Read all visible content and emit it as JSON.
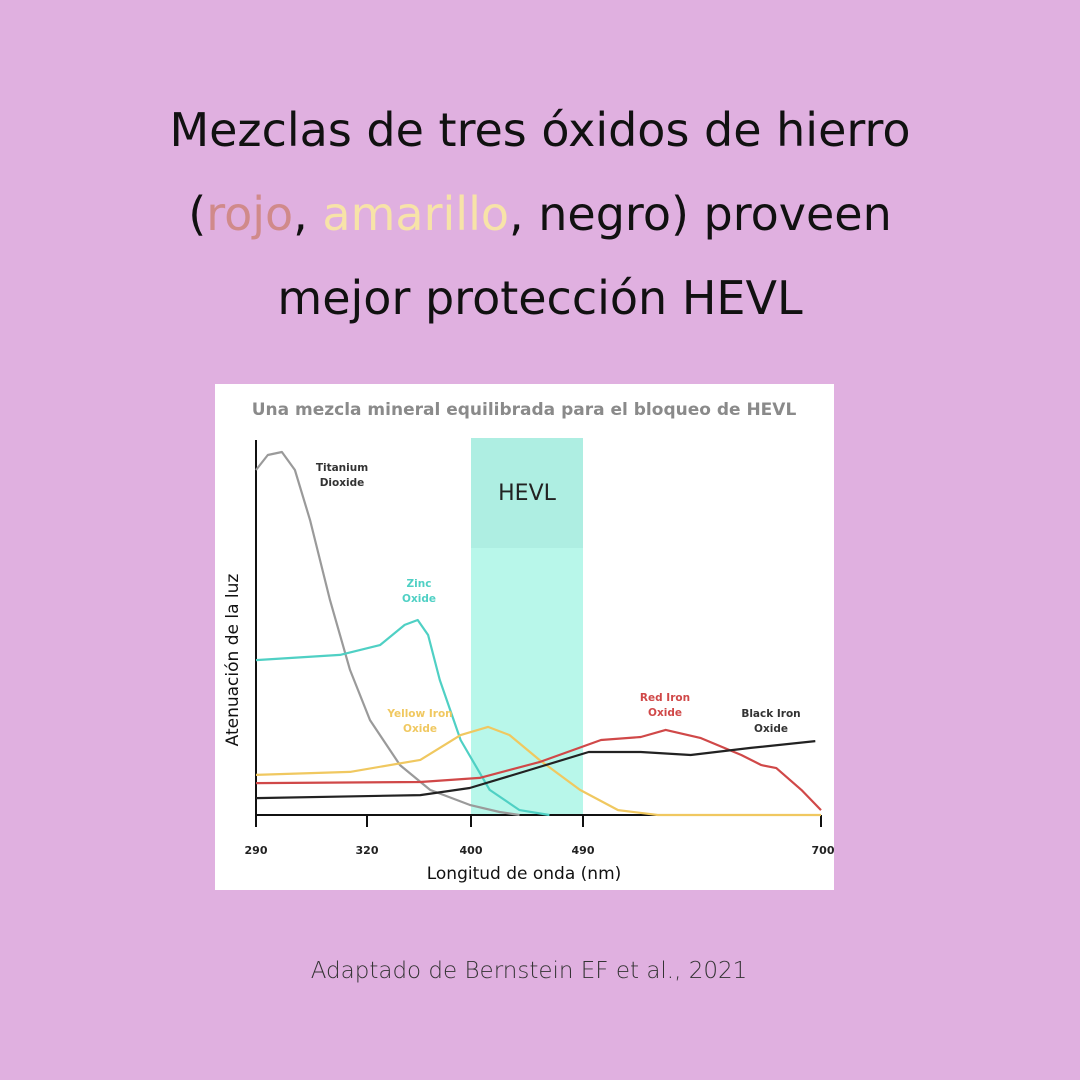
{
  "header": {
    "title_lines": [
      [
        {
          "text": "Mezclas de tres óxidos de hierro",
          "color": "#111111"
        }
      ],
      [
        {
          "text": "(",
          "color": "#111111"
        },
        {
          "text": "rojo",
          "color": "#d08a8a"
        },
        {
          "text": ", ",
          "color": "#111111"
        },
        {
          "text": "amarillo",
          "color": "#f7e3a8"
        },
        {
          "text": ", negro) proveen",
          "color": "#111111"
        }
      ],
      [
        {
          "text": "mejor protección HEVL",
          "color": "#111111"
        }
      ]
    ]
  },
  "chart_data": {
    "type": "line",
    "title": "Una mezcla mineral equilibrada para el bloqueo de HEVL",
    "x_label": "Longitud de onda (nm)",
    "y_label": "Atenuación  de la luz",
    "xticks": [
      290,
      320,
      400,
      490,
      700
    ],
    "xlim": [
      290,
      700
    ],
    "ylim": [
      0,
      100
    ],
    "band": {
      "label": "HEVL",
      "range": [
        400,
        490
      ],
      "color": "#b8f7ea",
      "top_color": "#aeeee2"
    },
    "series": [
      {
        "name": "Titanium Dioxide",
        "color": "#9a9a9a",
        "x": [
          290,
          293.2,
          297,
          300.5,
          304.6,
          310,
          315.4,
          322.3,
          345.4,
          368.5,
          399,
          423,
          439
        ],
        "values": [
          92,
          96,
          96.8,
          92,
          78.7,
          57.3,
          38.7,
          25.3,
          13.3,
          6.7,
          2.7,
          0.8,
          0
        ]
      },
      {
        "name": "Zinc Oxide",
        "color": "#4fd0c4",
        "x": [
          290,
          312.7,
          330,
          349,
          359,
          367,
          376,
          392,
          415,
          439,
          463
        ],
        "values": [
          41.3,
          42.7,
          45.3,
          50.7,
          52,
          48,
          36,
          20,
          6.7,
          1.3,
          0
        ]
      },
      {
        "name": "Yellow Iron Oxide",
        "color": "#f0c860",
        "x": [
          290,
          315.4,
          361,
          392,
          413.7,
          431,
          455,
          487.6,
          521,
          556,
          700
        ],
        "values": [
          10.7,
          11.5,
          14.7,
          21.3,
          23.5,
          21.3,
          14.7,
          6.7,
          1.3,
          0,
          0
        ]
      },
      {
        "name": "Red Iron Oxide",
        "color": "#d04848",
        "x": [
          290,
          361,
          407,
          455,
          505.9,
          541,
          563,
          594,
          629.7,
          647.4,
          660.6,
          682.7,
          700
        ],
        "values": [
          8.5,
          8.8,
          9.9,
          14.1,
          20,
          20.8,
          22.7,
          20.5,
          16,
          13.3,
          12.5,
          6.7,
          1.3
        ]
      },
      {
        "name": "Black Iron Oxide",
        "color": "#222222",
        "x": [
          290,
          361,
          399,
          447,
          495,
          541,
          585,
          638,
          695
        ],
        "values": [
          4.5,
          5.3,
          7.2,
          12,
          16.8,
          16.8,
          16,
          17.9,
          19.7
        ]
      }
    ]
  },
  "footer": {
    "citation": "Adaptado de Bernstein EF et al., 2021"
  }
}
